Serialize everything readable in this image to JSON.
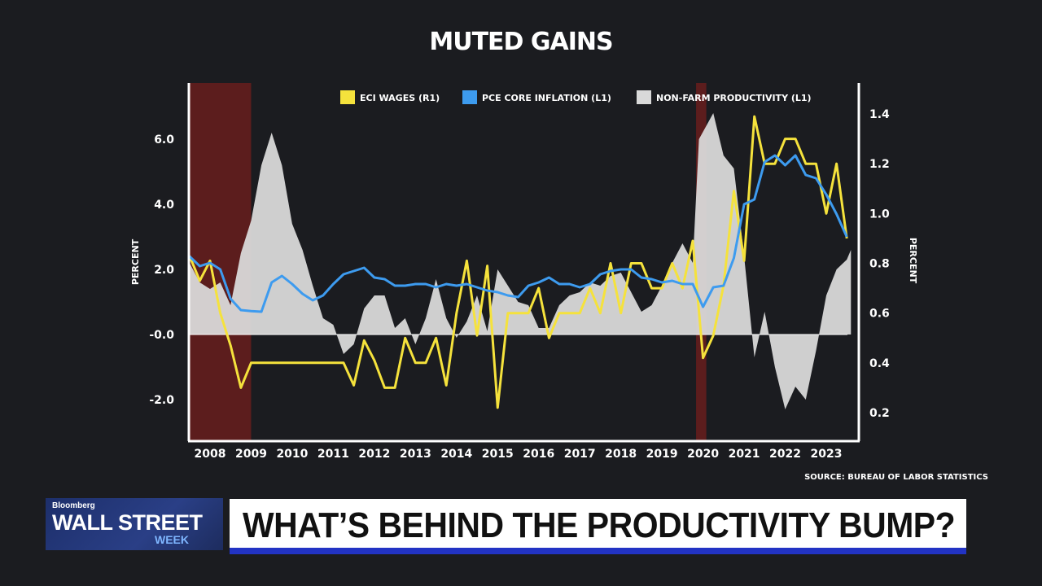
{
  "chart": {
    "title": "MUTED GAINS",
    "source": "SOURCE: BUREAU OF LABOR STATISTICS"
  },
  "chart_data": {
    "type": "line",
    "title": "MUTED GAINS",
    "ylabel_left": "PERCENT",
    "ylabel_right": "PERCENT",
    "y_left": {
      "ticks": [
        6.0,
        4.0,
        2.0,
        0.0,
        -2.0
      ],
      "tick_labels": [
        "6.0",
        "4.0",
        "2.0",
        "-0.0",
        "-2.0"
      ],
      "range": [
        -3.3,
        7.7
      ]
    },
    "y_right": {
      "ticks": [
        1.4,
        1.2,
        1.0,
        0.8,
        0.6,
        0.4,
        0.2
      ],
      "tick_labels": [
        "1.4",
        "1.2",
        "1.0",
        "0.8",
        "0.6",
        "0.4",
        "0.2"
      ],
      "range": [
        0.12,
        1.54
      ]
    },
    "x": {
      "range": [
        2007.5,
        2023.96
      ],
      "ticks": [
        2008,
        2009,
        2010,
        2011,
        2012,
        2013,
        2014,
        2015,
        2016,
        2017,
        2018,
        2019,
        2020,
        2021,
        2022,
        2023
      ]
    },
    "recessions": [
      [
        2007.5,
        2009.0
      ],
      [
        2019.83,
        2020.08
      ]
    ],
    "legend_position": "top",
    "series": [
      {
        "name": "ECI WAGES (R1)",
        "axis": "right",
        "color": "#f5e23c",
        "kind": "line",
        "points": [
          [
            2007.5,
            0.83
          ],
          [
            2007.75,
            0.73
          ],
          [
            2008.0,
            0.81
          ],
          [
            2008.25,
            0.6
          ],
          [
            2008.5,
            0.47
          ],
          [
            2008.75,
            0.3
          ],
          [
            2009.0,
            0.4
          ],
          [
            2009.25,
            0.4
          ],
          [
            2009.5,
            0.4
          ],
          [
            2009.75,
            0.4
          ],
          [
            2010.0,
            0.4
          ],
          [
            2010.25,
            0.4
          ],
          [
            2010.5,
            0.4
          ],
          [
            2010.75,
            0.4
          ],
          [
            2011.0,
            0.4
          ],
          [
            2011.25,
            0.4
          ],
          [
            2011.5,
            0.31
          ],
          [
            2011.75,
            0.49
          ],
          [
            2012.0,
            0.41
          ],
          [
            2012.25,
            0.3
          ],
          [
            2012.5,
            0.3
          ],
          [
            2012.75,
            0.5
          ],
          [
            2013.0,
            0.4
          ],
          [
            2013.25,
            0.4
          ],
          [
            2013.5,
            0.5
          ],
          [
            2013.75,
            0.31
          ],
          [
            2014.0,
            0.6
          ],
          [
            2014.25,
            0.81
          ],
          [
            2014.5,
            0.51
          ],
          [
            2014.75,
            0.79
          ],
          [
            2015.0,
            0.22
          ],
          [
            2015.25,
            0.6
          ],
          [
            2015.5,
            0.6
          ],
          [
            2015.75,
            0.6
          ],
          [
            2016.0,
            0.7
          ],
          [
            2016.25,
            0.5
          ],
          [
            2016.5,
            0.6
          ],
          [
            2016.75,
            0.6
          ],
          [
            2017.0,
            0.6
          ],
          [
            2017.25,
            0.7
          ],
          [
            2017.5,
            0.6
          ],
          [
            2017.75,
            0.8
          ],
          [
            2018.0,
            0.6
          ],
          [
            2018.25,
            0.8
          ],
          [
            2018.5,
            0.8
          ],
          [
            2018.75,
            0.7
          ],
          [
            2019.0,
            0.7
          ],
          [
            2019.25,
            0.8
          ],
          [
            2019.5,
            0.7
          ],
          [
            2019.75,
            0.89
          ],
          [
            2020.0,
            0.42
          ],
          [
            2020.25,
            0.51
          ],
          [
            2020.5,
            0.71
          ],
          [
            2020.75,
            1.09
          ],
          [
            2021.0,
            0.81
          ],
          [
            2021.25,
            1.39
          ],
          [
            2021.5,
            1.2
          ],
          [
            2021.75,
            1.2
          ],
          [
            2022.0,
            1.3
          ],
          [
            2022.25,
            1.3
          ],
          [
            2022.5,
            1.2
          ],
          [
            2022.75,
            1.2
          ],
          [
            2023.0,
            1.0
          ],
          [
            2023.25,
            1.2
          ],
          [
            2023.5,
            0.9
          ]
        ]
      },
      {
        "name": "PCE CORE INFLATION (L1)",
        "axis": "left",
        "color": "#3d9bef",
        "kind": "line",
        "points": [
          [
            2007.5,
            2.4
          ],
          [
            2007.75,
            2.1
          ],
          [
            2008.0,
            2.2
          ],
          [
            2008.25,
            2.0
          ],
          [
            2008.5,
            1.1
          ],
          [
            2008.75,
            0.75
          ],
          [
            2009.0,
            0.72
          ],
          [
            2009.25,
            0.7
          ],
          [
            2009.5,
            1.6
          ],
          [
            2009.75,
            1.8
          ],
          [
            2010.0,
            1.55
          ],
          [
            2010.25,
            1.25
          ],
          [
            2010.5,
            1.05
          ],
          [
            2010.75,
            1.2
          ],
          [
            2011.0,
            1.55
          ],
          [
            2011.25,
            1.85
          ],
          [
            2011.5,
            1.95
          ],
          [
            2011.75,
            2.05
          ],
          [
            2012.0,
            1.75
          ],
          [
            2012.25,
            1.7
          ],
          [
            2012.5,
            1.5
          ],
          [
            2012.75,
            1.5
          ],
          [
            2013.0,
            1.55
          ],
          [
            2013.25,
            1.55
          ],
          [
            2013.5,
            1.45
          ],
          [
            2013.75,
            1.55
          ],
          [
            2014.0,
            1.5
          ],
          [
            2014.25,
            1.55
          ],
          [
            2014.5,
            1.45
          ],
          [
            2014.75,
            1.35
          ],
          [
            2015.0,
            1.3
          ],
          [
            2015.25,
            1.2
          ],
          [
            2015.5,
            1.15
          ],
          [
            2015.75,
            1.5
          ],
          [
            2016.0,
            1.6
          ],
          [
            2016.25,
            1.75
          ],
          [
            2016.5,
            1.55
          ],
          [
            2016.75,
            1.55
          ],
          [
            2017.0,
            1.45
          ],
          [
            2017.25,
            1.55
          ],
          [
            2017.5,
            1.85
          ],
          [
            2017.75,
            1.95
          ],
          [
            2018.0,
            2.0
          ],
          [
            2018.25,
            2.0
          ],
          [
            2018.5,
            1.75
          ],
          [
            2018.75,
            1.7
          ],
          [
            2019.0,
            1.6
          ],
          [
            2019.25,
            1.65
          ],
          [
            2019.5,
            1.55
          ],
          [
            2019.75,
            1.55
          ],
          [
            2020.0,
            0.85
          ],
          [
            2020.25,
            1.45
          ],
          [
            2020.5,
            1.5
          ],
          [
            2020.75,
            2.35
          ],
          [
            2021.0,
            4.0
          ],
          [
            2021.25,
            4.15
          ],
          [
            2021.5,
            5.3
          ],
          [
            2021.75,
            5.5
          ],
          [
            2022.0,
            5.2
          ],
          [
            2022.25,
            5.5
          ],
          [
            2022.5,
            4.9
          ],
          [
            2022.75,
            4.8
          ],
          [
            2023.0,
            4.3
          ],
          [
            2023.25,
            3.7
          ],
          [
            2023.5,
            3.0
          ]
        ]
      },
      {
        "name": "NON-FARM PRODUCTIVITY (L1)",
        "axis": "left",
        "color": "#d9d9d9",
        "kind": "area",
        "points": [
          [
            2007.5,
            2.2
          ],
          [
            2007.75,
            1.6
          ],
          [
            2008.0,
            1.4
          ],
          [
            2008.25,
            1.6
          ],
          [
            2008.5,
            0.9
          ],
          [
            2008.75,
            2.5
          ],
          [
            2009.0,
            3.5
          ],
          [
            2009.25,
            5.2
          ],
          [
            2009.5,
            6.2
          ],
          [
            2009.75,
            5.2
          ],
          [
            2010.0,
            3.4
          ],
          [
            2010.25,
            2.6
          ],
          [
            2010.5,
            1.5
          ],
          [
            2010.75,
            0.5
          ],
          [
            2011.0,
            0.3
          ],
          [
            2011.25,
            -0.6
          ],
          [
            2011.5,
            -0.3
          ],
          [
            2011.75,
            0.8
          ],
          [
            2012.0,
            1.2
          ],
          [
            2012.25,
            1.2
          ],
          [
            2012.5,
            0.2
          ],
          [
            2012.75,
            0.5
          ],
          [
            2013.0,
            -0.3
          ],
          [
            2013.25,
            0.5
          ],
          [
            2013.5,
            1.7
          ],
          [
            2013.75,
            0.5
          ],
          [
            2014.0,
            -0.1
          ],
          [
            2014.25,
            0.4
          ],
          [
            2014.5,
            1.2
          ],
          [
            2014.75,
            0.1
          ],
          [
            2015.0,
            2.0
          ],
          [
            2015.25,
            1.5
          ],
          [
            2015.5,
            1.0
          ],
          [
            2015.75,
            0.9
          ],
          [
            2016.0,
            0.2
          ],
          [
            2016.25,
            0.2
          ],
          [
            2016.5,
            0.9
          ],
          [
            2016.75,
            1.2
          ],
          [
            2017.0,
            1.3
          ],
          [
            2017.25,
            1.6
          ],
          [
            2017.5,
            1.5
          ],
          [
            2017.75,
            1.8
          ],
          [
            2018.0,
            1.9
          ],
          [
            2018.25,
            1.3
          ],
          [
            2018.5,
            0.7
          ],
          [
            2018.75,
            0.9
          ],
          [
            2019.0,
            1.5
          ],
          [
            2019.25,
            2.2
          ],
          [
            2019.5,
            2.8
          ],
          [
            2019.75,
            2.2
          ],
          [
            2019.9,
            6.0
          ],
          [
            2020.25,
            6.8
          ],
          [
            2020.5,
            5.5
          ],
          [
            2020.75,
            5.1
          ],
          [
            2021.0,
            2.4
          ],
          [
            2021.25,
            -0.7
          ],
          [
            2021.5,
            0.7
          ],
          [
            2021.75,
            -1.0
          ],
          [
            2022.0,
            -2.3
          ],
          [
            2022.25,
            -1.6
          ],
          [
            2022.5,
            -2.0
          ],
          [
            2022.75,
            -0.5
          ],
          [
            2023.0,
            1.2
          ],
          [
            2023.25,
            2.0
          ],
          [
            2023.5,
            2.3
          ],
          [
            2023.6,
            2.6
          ]
        ]
      }
    ]
  },
  "headline": {
    "text": "WHAT’S BEHIND THE PRODUCTIVITY BUMP?"
  },
  "logo": {
    "brand": "Bloomberg",
    "main": "WALL STREET",
    "sub": "WEEK"
  }
}
